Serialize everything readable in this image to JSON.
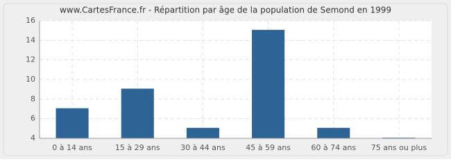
{
  "chart_data": {
    "type": "bar",
    "title": "www.CartesFrance.fr - Répartition par âge de la population de Semond en 1999",
    "categories": [
      "0 à 14 ans",
      "15 à 29 ans",
      "30 à 44 ans",
      "45 à 59 ans",
      "60 à 74 ans",
      "75 ans ou plus"
    ],
    "values": [
      7,
      9,
      5,
      15,
      5,
      4
    ],
    "color": "#2e6395",
    "ylim": [
      4,
      16
    ],
    "yticks": [
      4,
      6,
      8,
      10,
      12,
      14,
      16
    ],
    "grid": true
  }
}
